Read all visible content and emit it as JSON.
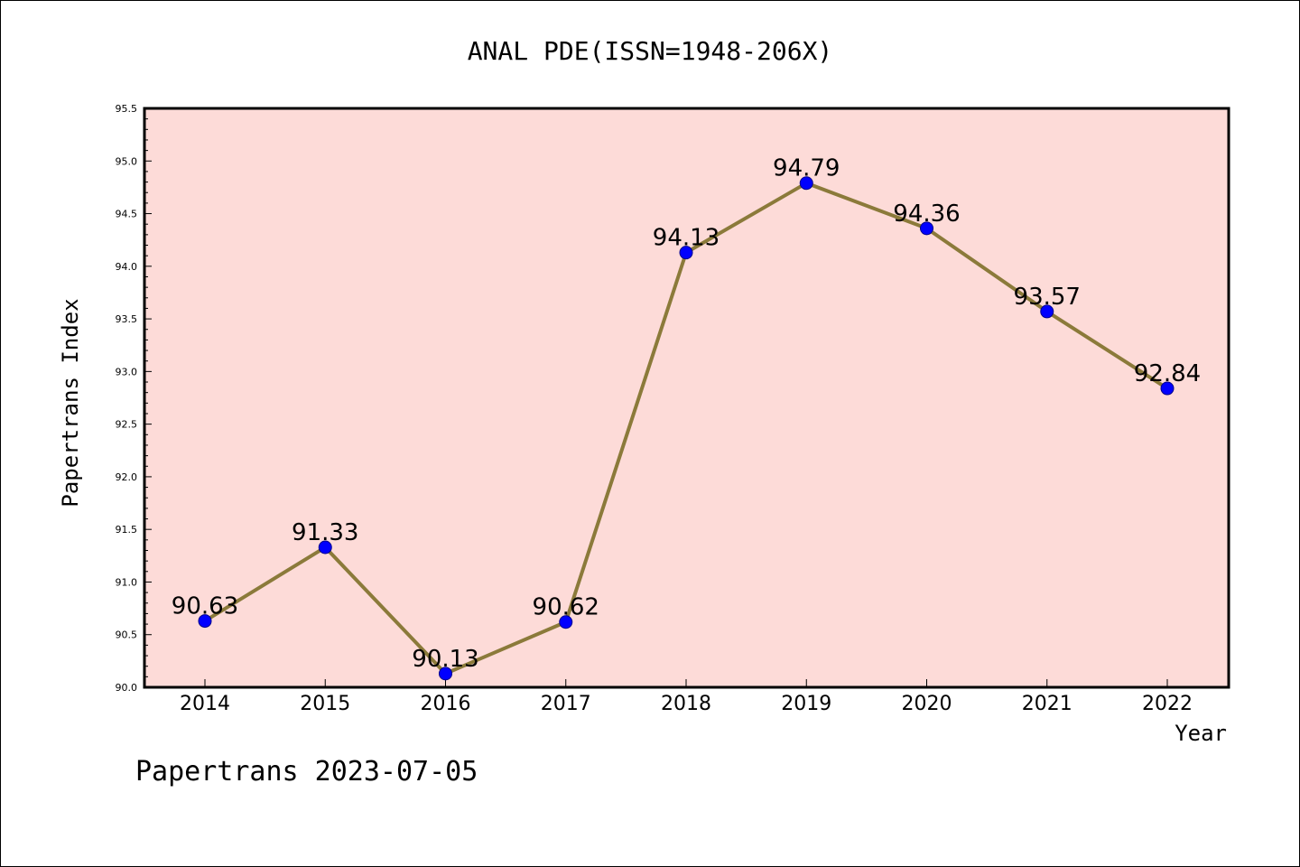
{
  "chart_data": {
    "type": "line",
    "title": "ANAL PDE(ISSN=1948-206X)",
    "xlabel": "Year",
    "ylabel": "Papertrans Index",
    "categories": [
      "2014",
      "2015",
      "2016",
      "2017",
      "2018",
      "2019",
      "2020",
      "2021",
      "2022"
    ],
    "series": [
      {
        "values": [
          90.63,
          91.33,
          90.13,
          90.62,
          94.13,
          94.79,
          94.36,
          93.57,
          92.84
        ],
        "labels": [
          "90.63",
          "91.33",
          "90.13",
          "90.62",
          "94.13",
          "94.79",
          "94.36",
          "93.57",
          "92.84"
        ]
      }
    ],
    "ylim": [
      90.0,
      95.5
    ],
    "yticks": [
      "90.0",
      "90.5",
      "91.0",
      "91.5",
      "92.0",
      "92.5",
      "93.0",
      "93.5",
      "94.0",
      "94.5",
      "95.0",
      "95.5"
    ],
    "grid": false,
    "colors": {
      "plot_background": "#fddbd8",
      "line": "#8b7a3a",
      "marker": "#0000ff"
    }
  },
  "footer": "Papertrans 2023-07-05"
}
